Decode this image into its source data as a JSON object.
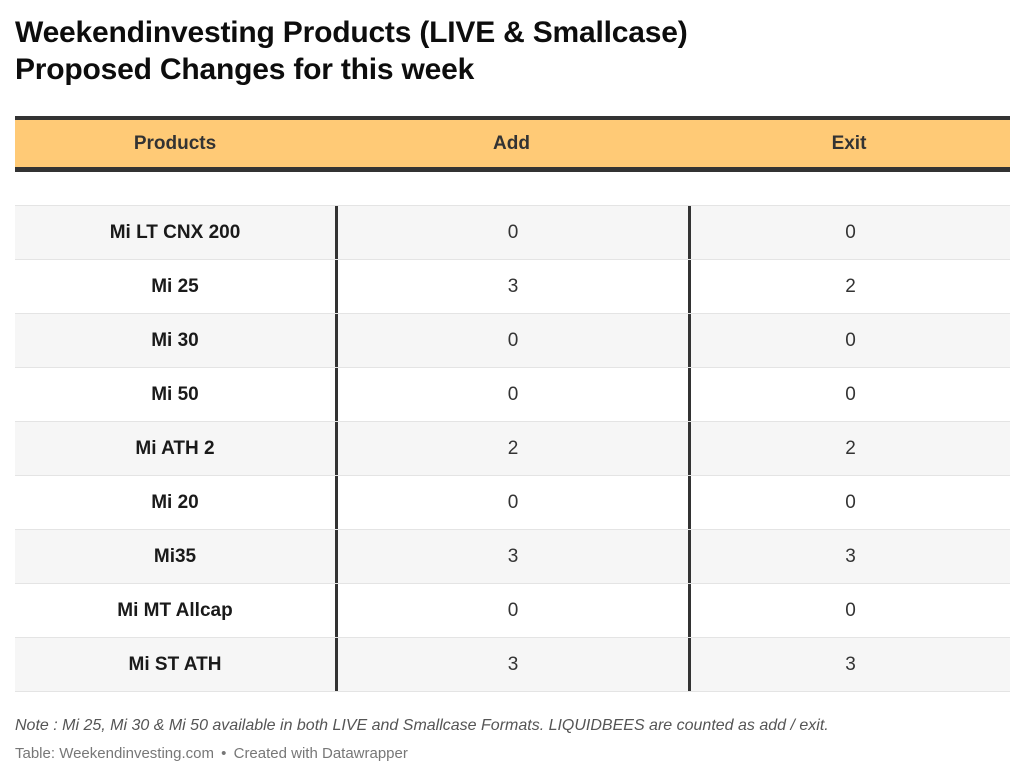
{
  "title": {
    "line1": "Weekendinvesting Products (LIVE & Smallcase)",
    "line2": "Proposed Changes for this week"
  },
  "table": {
    "headers": {
      "products": "Products",
      "add": "Add",
      "exit": "Exit"
    },
    "header_color": "#ffca76",
    "rows": [
      {
        "product": "Mi LT CNX 200",
        "add": "0",
        "exit": "0"
      },
      {
        "product": "Mi 25",
        "add": "3",
        "exit": "2"
      },
      {
        "product": "Mi 30",
        "add": "0",
        "exit": "0"
      },
      {
        "product": "Mi 50",
        "add": "0",
        "exit": "0"
      },
      {
        "product": "Mi ATH 2",
        "add": "2",
        "exit": "2"
      },
      {
        "product": "Mi 20",
        "add": "0",
        "exit": "0"
      },
      {
        "product": "Mi35",
        "add": "3",
        "exit": "3"
      },
      {
        "product": "Mi MT Allcap",
        "add": "0",
        "exit": "0"
      },
      {
        "product": "Mi ST ATH",
        "add": "3",
        "exit": "3"
      }
    ]
  },
  "footer": {
    "note": "Note : Mi 25, Mi 30 & Mi 50 available in both LIVE and Smallcase Formats. LIQUIDBEES are counted as add / exit.",
    "source": "Table: Weekendinvesting.com",
    "separator": "•",
    "credit": "Created with Datawrapper"
  }
}
